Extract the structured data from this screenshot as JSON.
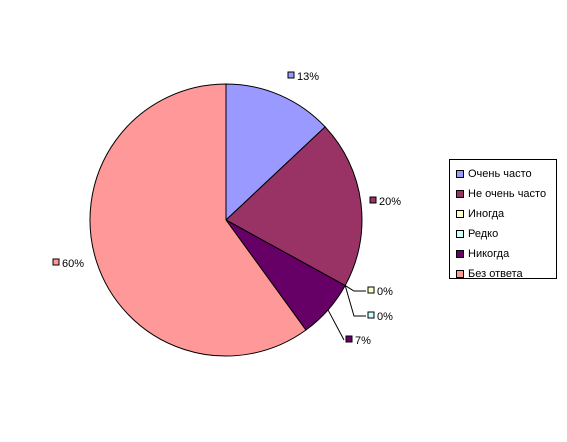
{
  "chart_data": {
    "type": "pie",
    "categories": [
      "Очень часто",
      "Не очень часто",
      "Иногда",
      "Редко",
      "Никогда",
      "Без ответа"
    ],
    "values": [
      13,
      20,
      0,
      0,
      7,
      60
    ],
    "labels": [
      "13%",
      "20%",
      "0%",
      "0%",
      "7%",
      "60%"
    ],
    "colors": [
      "#9999ff",
      "#993366",
      "#ffffcc",
      "#ccffff",
      "#660066",
      "#ff9999"
    ],
    "title": "",
    "legend_position": "right"
  }
}
